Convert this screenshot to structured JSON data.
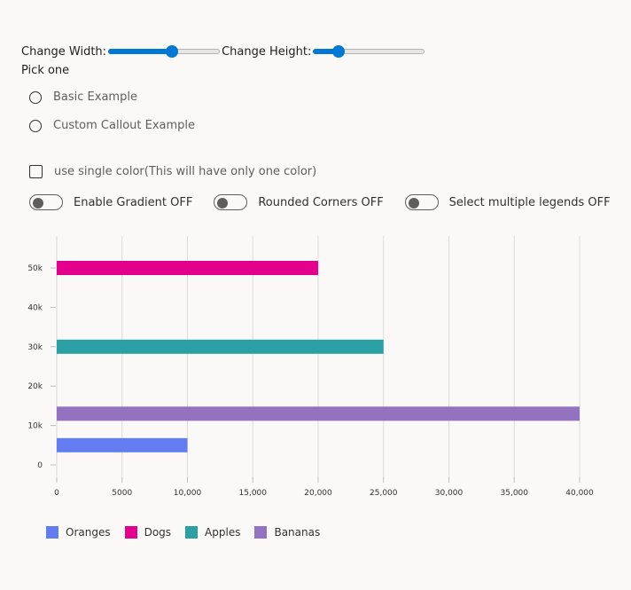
{
  "controls": {
    "width_label": "Change Width:",
    "width_value": 0.57,
    "height_label": "Change Height:",
    "height_value": 0.23,
    "pick_label": "Pick one",
    "options": [
      "Basic Example",
      "Custom Callout Example"
    ],
    "single_color_label": "use single color(This will have only one color)",
    "toggles": {
      "gradient": "Enable Gradient OFF",
      "rounded": "Rounded Corners OFF",
      "legends": "Select multiple legends OFF"
    }
  },
  "chart_data": {
    "type": "bar",
    "orientation": "horizontal",
    "title": "",
    "xlabel": "",
    "ylabel": "",
    "xlim": [
      0,
      40000
    ],
    "ylim": [
      0,
      55000
    ],
    "x_ticks": [
      0,
      5000,
      10000,
      15000,
      20000,
      25000,
      30000,
      35000,
      40000
    ],
    "x_tick_labels": [
      "0",
      "5000",
      "10,000",
      "15,000",
      "20,000",
      "25,000",
      "30,000",
      "35,000",
      "40,000"
    ],
    "y_ticks": [
      0,
      10000,
      20000,
      30000,
      40000,
      50000
    ],
    "y_tick_labels": [
      "0",
      "10k",
      "20k",
      "30k",
      "40k",
      "50k"
    ],
    "series": [
      {
        "name": "Oranges",
        "y": 5000,
        "value": 10000,
        "color": "#637cef"
      },
      {
        "name": "Dogs",
        "y": 50000,
        "value": 20000,
        "color": "#e3008c"
      },
      {
        "name": "Apples",
        "y": 30000,
        "value": 25000,
        "color": "#2aa0a4"
      },
      {
        "name": "Bananas",
        "y": 13000,
        "value": 40000,
        "color": "#9373c0"
      }
    ],
    "grid": true,
    "legend_position": "bottom-left"
  }
}
